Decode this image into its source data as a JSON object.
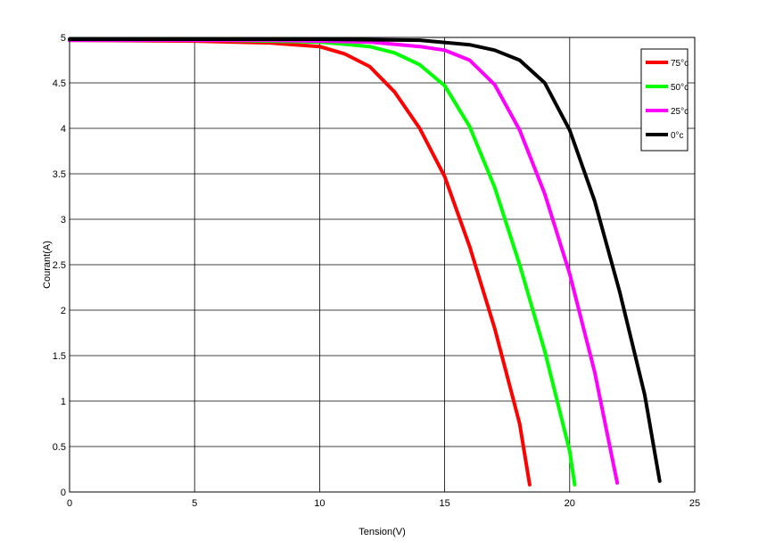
{
  "chart_data": {
    "type": "line",
    "xlabel": "Tension(V)",
    "ylabel": "Courant(A)",
    "xlim": [
      0,
      25
    ],
    "ylim": [
      0,
      5
    ],
    "xticks": [
      0,
      5,
      10,
      15,
      20,
      25
    ],
    "yticks": [
      0,
      0.5,
      1,
      1.5,
      2,
      2.5,
      3,
      3.5,
      4,
      4.5,
      5
    ],
    "ytick_labels": [
      "0",
      "0.5",
      "1",
      "1.5",
      "2",
      "2.5",
      "3",
      "3.5",
      "4",
      "4.5",
      "5"
    ],
    "grid": true,
    "legend_position": "top-right",
    "series": [
      {
        "name": "75°c",
        "color": "#ff0000",
        "x": [
          0,
          5,
          8,
          10,
          11,
          12,
          13,
          14,
          15,
          16,
          17,
          18,
          18.4
        ],
        "y": [
          4.97,
          4.96,
          4.94,
          4.9,
          4.82,
          4.68,
          4.4,
          4.0,
          3.47,
          2.7,
          1.8,
          0.75,
          0.08
        ]
      },
      {
        "name": "50°c",
        "color": "#00ff00",
        "x": [
          0,
          6,
          10,
          12,
          13,
          14,
          15,
          16,
          17,
          18,
          19,
          20,
          20.2
        ],
        "y": [
          4.97,
          4.97,
          4.95,
          4.9,
          4.83,
          4.7,
          4.47,
          4.02,
          3.35,
          2.5,
          1.55,
          0.45,
          0.08
        ]
      },
      {
        "name": "25°c",
        "color": "#ff00ff",
        "x": [
          0,
          8,
          12,
          14,
          15,
          16,
          17,
          18,
          19,
          20,
          21,
          21.9
        ],
        "y": [
          4.97,
          4.97,
          4.95,
          4.9,
          4.86,
          4.75,
          4.48,
          3.98,
          3.28,
          2.4,
          1.32,
          0.1
        ]
      },
      {
        "name": "0°c",
        "color": "#000000",
        "x": [
          0,
          10,
          14,
          16,
          17,
          18,
          19,
          20,
          21,
          22,
          23,
          23.6
        ],
        "y": [
          4.98,
          4.98,
          4.97,
          4.92,
          4.86,
          4.75,
          4.5,
          3.98,
          3.2,
          2.2,
          1.07,
          0.12
        ]
      }
    ]
  }
}
